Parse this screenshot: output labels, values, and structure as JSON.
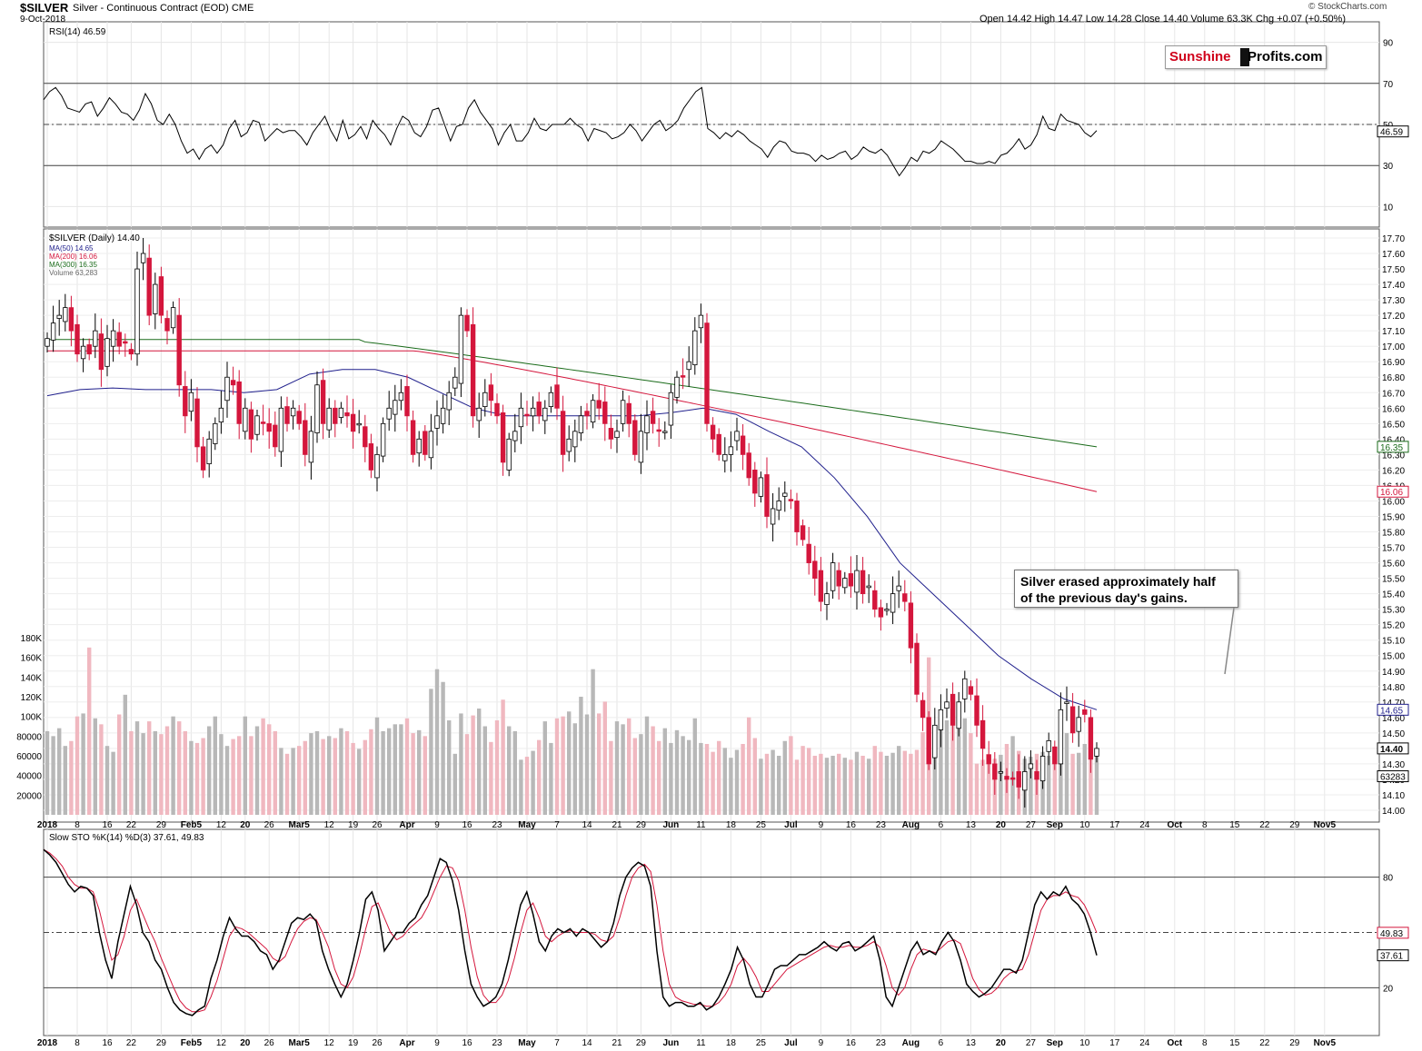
{
  "header": {
    "ticker": "$SILVER",
    "name": "Silver - Continuous Contract (EOD)",
    "exchange": "CME",
    "date": "9-Oct-2018",
    "ohlc_text": "Open 14.42 High 14.47 Low 14.28 Close 14.40 Volume 63.3K Chg +0.07 (+0.50%)",
    "credit": "© StockCharts.com",
    "logo_part1": "Sunshine",
    "logo_part2": "Profits.com"
  },
  "annotation": {
    "line1": "Silver erased approximately half",
    "line2": "of the previous day's gains."
  },
  "colors": {
    "up": "#ffffff",
    "down": "#d4163c",
    "ma50": "#1f1f8c",
    "ma200": "#d4163c",
    "ma300": "#1a6b1a",
    "volume_up": "#b8b8b8",
    "volume_down": "#f0b8c0"
  },
  "chart_data": [
    {
      "type": "line",
      "title": "RSI(14) 46.59",
      "ylim": [
        0,
        100
      ],
      "ticks": [
        90,
        70,
        50,
        30,
        10
      ],
      "reference_lines": [
        70,
        50,
        30
      ],
      "last_value_label": "46.59",
      "series": [
        {
          "name": "RSI(14)",
          "values": [
            62,
            66,
            68,
            64,
            58,
            57,
            56,
            60,
            61,
            54,
            58,
            63,
            60,
            56,
            55,
            52,
            57,
            65,
            60,
            52,
            50,
            55,
            50,
            42,
            36,
            38,
            33,
            38,
            40,
            36,
            40,
            48,
            52,
            44,
            46,
            52,
            51,
            42,
            45,
            48,
            46,
            47,
            47,
            44,
            40,
            46,
            50,
            54,
            47,
            42,
            52,
            43,
            45,
            49,
            43,
            52,
            48,
            45,
            40,
            48,
            54,
            52,
            46,
            44,
            49,
            57,
            58,
            50,
            42,
            49,
            50,
            58,
            62,
            56,
            52,
            48,
            40,
            46,
            50,
            42,
            42,
            46,
            53,
            48,
            47,
            50,
            50,
            50,
            53,
            50,
            48,
            42,
            48,
            47,
            46,
            43,
            44,
            46,
            50,
            47,
            42,
            46,
            50,
            52,
            47,
            49,
            52,
            58,
            62,
            66,
            68,
            48,
            46,
            43,
            46,
            44,
            47,
            45,
            42,
            40,
            38,
            34,
            39,
            42,
            41,
            37,
            36,
            36,
            35,
            32,
            35,
            33,
            34,
            36,
            37,
            33,
            35,
            39,
            37,
            36,
            38,
            35,
            30,
            25,
            29,
            34,
            32,
            37,
            36,
            38,
            42,
            40,
            38,
            35,
            32,
            32,
            31,
            31,
            32,
            31,
            35,
            36,
            39,
            43,
            38,
            40,
            45,
            54,
            48,
            47,
            55,
            52,
            51,
            50,
            46,
            44,
            47
          ]
        }
      ]
    },
    {
      "type": "candlestick",
      "title": "$SILVER (Daily) 14.40",
      "ylim": [
        13.92,
        17.8
      ],
      "x_ticks": [
        "2018",
        "8",
        "16",
        "22",
        "29",
        "Feb5",
        "12",
        "20",
        "26",
        "Mar5",
        "12",
        "19",
        "26",
        "Apr",
        "9",
        "16",
        "23",
        "May",
        "7",
        "14",
        "21",
        "29",
        "Jun",
        "11",
        "18",
        "25",
        "Jul",
        "9",
        "16",
        "23",
        "Aug",
        "6",
        "13",
        "20",
        "27",
        "Sep",
        "10",
        "17",
        "24",
        "Oct",
        "8",
        "15",
        "22",
        "29",
        "Nov5"
      ],
      "y_ticks": [
        17.7,
        17.6,
        17.5,
        17.4,
        17.3,
        17.2,
        17.1,
        17.0,
        16.9,
        16.8,
        16.7,
        16.6,
        16.5,
        16.4,
        16.3,
        16.2,
        16.1,
        16.0,
        15.9,
        15.8,
        15.7,
        15.6,
        15.5,
        15.4,
        15.3,
        15.2,
        15.1,
        15.0,
        14.9,
        14.8,
        14.7,
        14.6,
        14.5,
        14.4,
        14.3,
        14.2,
        14.1,
        14.0
      ],
      "legend": [
        "MA(50) 14.65",
        "MA(200) 16.06",
        "MA(300) 16.35",
        "Volume 63,283"
      ],
      "right_labels": [
        "16.35",
        "16.06",
        "14.65",
        "14.40",
        "63283"
      ],
      "volume_ticks": [
        "180K",
        "160K",
        "140K",
        "120K",
        "100K",
        "80000",
        "60000",
        "40000",
        "20000"
      ],
      "close": [
        17.05,
        17.15,
        17.2,
        17.25,
        17.1,
        16.95,
        17.0,
        16.95,
        17.1,
        16.85,
        17.05,
        17.1,
        17.0,
        17.02,
        16.95,
        17.5,
        17.6,
        17.2,
        17.4,
        17.2,
        17.1,
        17.25,
        16.75,
        16.55,
        16.7,
        16.35,
        16.2,
        16.4,
        16.5,
        16.6,
        16.8,
        16.75,
        16.5,
        16.6,
        16.4,
        16.55,
        16.5,
        16.45,
        16.35,
        16.6,
        16.5,
        16.6,
        16.5,
        16.3,
        16.45,
        16.75,
        16.5,
        16.6,
        16.5,
        16.6,
        16.55,
        16.45,
        16.5,
        16.35,
        16.2,
        16.3,
        16.5,
        16.6,
        16.65,
        16.7,
        16.55,
        16.3,
        16.4,
        16.3,
        16.45,
        16.55,
        16.6,
        16.7,
        16.8,
        17.2,
        17.1,
        16.55,
        16.6,
        16.7,
        16.65,
        16.55,
        16.25,
        16.4,
        16.45,
        16.6,
        16.55,
        16.6,
        16.55,
        16.6,
        16.7,
        16.6,
        16.3,
        16.4,
        16.45,
        16.55,
        16.55,
        16.65,
        16.6,
        16.5,
        16.4,
        16.45,
        16.65,
        16.5,
        16.3,
        16.45,
        16.55,
        16.5,
        16.45,
        16.45,
        16.7,
        16.8,
        16.8,
        16.9,
        17.1,
        17.2,
        16.5,
        16.4,
        16.3,
        16.3,
        16.35,
        16.45,
        16.3,
        16.15,
        16.05,
        16.15,
        15.9,
        15.95,
        16.0,
        16.05,
        16.0,
        15.8,
        15.75,
        15.6,
        15.5,
        15.35,
        15.4,
        15.6,
        15.45,
        15.5,
        15.45,
        15.55,
        15.4,
        15.45,
        15.3,
        15.25,
        15.3,
        15.4,
        15.45,
        15.35,
        15.05,
        14.75,
        14.6,
        14.3,
        14.55,
        14.65,
        14.7,
        14.55,
        14.7,
        14.85,
        14.75,
        14.55,
        14.4,
        14.3,
        14.2,
        14.25,
        14.2,
        14.2,
        14.15,
        14.25,
        14.3,
        14.2,
        14.35,
        14.45,
        14.3,
        14.65,
        14.7,
        14.5,
        14.6,
        14.62,
        14.33,
        14.4
      ],
      "volume": [
        85000,
        80000,
        88000,
        70000,
        75000,
        100000,
        103000,
        170000,
        98000,
        92000,
        70000,
        64000,
        102000,
        122000,
        85000,
        95000,
        83000,
        95000,
        85000,
        82000,
        90000,
        100000,
        95000,
        85000,
        75000,
        73000,
        78000,
        90000,
        100000,
        82000,
        70000,
        77000,
        80000,
        100000,
        80000,
        90000,
        98000,
        92000,
        85000,
        68000,
        62000,
        68000,
        70000,
        75000,
        83000,
        85000,
        77000,
        80000,
        78000,
        88000,
        85000,
        73000,
        67000,
        76000,
        87000,
        99000,
        85000,
        88000,
        92000,
        92000,
        98000,
        83000,
        86000,
        80000,
        128000,
        148000,
        135000,
        96000,
        62000,
        103000,
        82000,
        101000,
        108000,
        90000,
        74000,
        96000,
        117000,
        90000,
        85000,
        56000,
        59000,
        65000,
        76000,
        95000,
        73000,
        98000,
        100000,
        105000,
        93000,
        120000,
        102000,
        148000,
        103000,
        115000,
        75000,
        95000,
        92000,
        98000,
        78000,
        82000,
        100000,
        90000,
        75000,
        88000,
        73000,
        86000,
        80000,
        76000,
        98000,
        73000,
        72000,
        64000,
        75000,
        68000,
        58000,
        66000,
        72000,
        99000,
        78000,
        57000,
        62000,
        66000,
        60000,
        75000,
        80000,
        56000,
        70000,
        68000,
        60000,
        62000,
        58000,
        60000,
        62000,
        58000,
        56000,
        64000,
        60000,
        57000,
        70000,
        64000,
        60000,
        63000,
        70000,
        65000,
        62000,
        66000,
        84000,
        160000,
        85000,
        100000,
        96000,
        94000,
        101000,
        98000,
        83000,
        52000,
        56000,
        60000,
        57000,
        61000,
        72000,
        80000,
        65000,
        57000,
        59000,
        62000,
        64000,
        60000,
        62000,
        80000,
        83000,
        62000,
        63000,
        72000,
        86000,
        63000
      ],
      "series": [
        {
          "name": "MA(50)",
          "start": 16.68,
          "end": 14.65
        },
        {
          "name": "MA(200)",
          "start": 16.97,
          "end": 16.06
        },
        {
          "name": "MA(300)",
          "start": 17.03,
          "end": 16.35
        }
      ]
    },
    {
      "type": "line",
      "title": "Slow STO %K(14) %D(3) 37.61, 49.83",
      "ylim": [
        0,
        100
      ],
      "ticks": [
        80,
        20
      ],
      "reference_lines": [
        80,
        50,
        20
      ],
      "last_value_labels": [
        "49.83",
        "37.61"
      ],
      "series": [
        {
          "name": "%K(14)",
          "values": [
            95,
            92,
            88,
            82,
            76,
            72,
            75,
            74,
            70,
            50,
            35,
            25,
            45,
            60,
            75,
            65,
            50,
            45,
            35,
            30,
            20,
            12,
            8,
            6,
            5,
            8,
            10,
            25,
            35,
            48,
            58,
            52,
            48,
            48,
            45,
            40,
            38,
            30,
            35,
            45,
            55,
            58,
            57,
            60,
            56,
            40,
            30,
            22,
            15,
            22,
            35,
            50,
            68,
            72,
            62,
            40,
            45,
            50,
            50,
            55,
            58,
            65,
            70,
            80,
            90,
            88,
            78,
            62,
            40,
            22,
            15,
            10,
            12,
            15,
            22,
            35,
            50,
            65,
            72,
            60,
            45,
            40,
            48,
            52,
            50,
            52,
            48,
            52,
            50,
            46,
            42,
            45,
            55,
            70,
            80,
            85,
            88,
            86,
            75,
            40,
            15,
            10,
            12,
            12,
            10,
            10,
            12,
            8,
            10,
            15,
            22,
            30,
            42,
            35,
            22,
            15,
            15,
            22,
            30,
            32,
            32,
            35,
            38,
            38,
            40,
            42,
            45,
            42,
            40,
            44,
            45,
            40,
            42,
            45,
            48,
            35,
            15,
            10,
            20,
            30,
            40,
            45,
            38,
            40,
            38,
            45,
            50,
            45,
            35,
            22,
            18,
            15,
            17,
            20,
            25,
            30,
            30,
            28,
            35,
            50,
            65,
            72,
            68,
            72,
            70,
            75,
            68,
            65,
            60,
            50,
            37.61
          ]
        },
        {
          "name": "%D(3)",
          "values": [
            95,
            93,
            90,
            86,
            80,
            76,
            74,
            74,
            72,
            62,
            48,
            35,
            38,
            48,
            62,
            68,
            60,
            52,
            45,
            36,
            28,
            20,
            13,
            9,
            7,
            7,
            8,
            15,
            24,
            36,
            48,
            53,
            52,
            50,
            47,
            44,
            41,
            36,
            34,
            37,
            45,
            52,
            56,
            58,
            57,
            50,
            42,
            30,
            22,
            20,
            26,
            38,
            52,
            64,
            66,
            58,
            50,
            46,
            48,
            52,
            55,
            58,
            64,
            72,
            80,
            86,
            85,
            78,
            62,
            42,
            26,
            16,
            12,
            12,
            16,
            24,
            36,
            50,
            62,
            66,
            58,
            48,
            45,
            48,
            50,
            51,
            50,
            50,
            50,
            49,
            46,
            45,
            48,
            58,
            70,
            80,
            85,
            87,
            83,
            65,
            40,
            22,
            15,
            13,
            12,
            11,
            11,
            10,
            10,
            12,
            16,
            22,
            32,
            36,
            32,
            26,
            18,
            18,
            22,
            26,
            30,
            32,
            34,
            36,
            38,
            40,
            42,
            43,
            42,
            42,
            43,
            42,
            42,
            43,
            45,
            42,
            32,
            20,
            16,
            20,
            30,
            38,
            41,
            40,
            39,
            42,
            45,
            46,
            44,
            35,
            25,
            19,
            16,
            17,
            20,
            25,
            28,
            29,
            30,
            38,
            50,
            62,
            68,
            70,
            70,
            72,
            70,
            69,
            65,
            58,
            49.83
          ]
        }
      ]
    }
  ]
}
